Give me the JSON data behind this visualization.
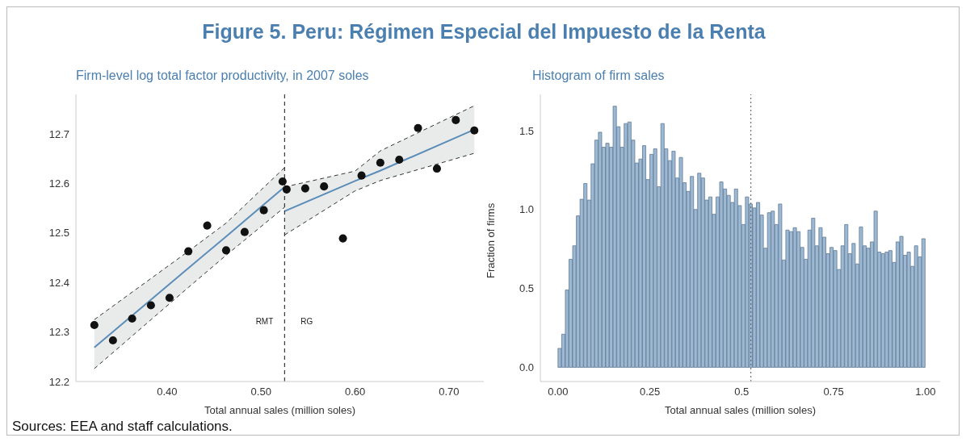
{
  "chart_data": [
    {
      "type": "scatter",
      "title": "Figure 5. Peru: Régimen Especial del Impuesto de la Renta",
      "subtitle": "Firm-level log total factor productivity, in 2007 soles",
      "xlabel": "Total annual sales (million soles)",
      "xlim": [
        0.303,
        0.737
      ],
      "xticks": [
        {
          "value": 0.4,
          "label": "0.40"
        },
        {
          "value": 0.5,
          "label": "0.50"
        },
        {
          "value": 0.6,
          "label": "0.60"
        },
        {
          "value": 0.7,
          "label": "0.70"
        }
      ],
      "ylim": [
        12.2,
        12.78
      ],
      "yticks": [
        12.2,
        12.3,
        12.4,
        12.5,
        12.6,
        12.7
      ],
      "series": [
        {
          "type": "scatter",
          "color": "#111111",
          "marker": "circle",
          "x": [
            0.3226,
            0.3424,
            0.3628,
            0.3828,
            0.4026,
            0.4226,
            0.4427,
            0.4628,
            0.4825,
            0.5029,
            0.5229,
            0.5272,
            0.547,
            0.567,
            0.5871,
            0.6069,
            0.6269,
            0.647,
            0.667,
            0.6871,
            0.7072,
            0.7269
          ],
          "values": [
            12.314,
            12.283,
            12.327,
            12.354,
            12.369,
            12.463,
            12.515,
            12.465,
            12.502,
            12.546,
            12.604,
            12.588,
            12.59,
            12.594,
            12.489,
            12.616,
            12.642,
            12.648,
            12.712,
            12.63,
            12.728,
            12.707
          ]
        },
        {
          "type": "line",
          "color": "#5b8db8",
          "x": [
            0.3226,
            0.4226,
            0.4628,
            0.525
          ],
          "values": [
            12.269,
            12.429,
            12.493,
            12.593
          ],
          "lower": [
            12.226,
            12.39,
            12.455,
            12.552
          ],
          "upper": [
            12.325,
            12.463,
            12.52,
            12.632
          ]
        },
        {
          "type": "line",
          "color": "#5b8db8",
          "x": [
            0.525,
            0.6,
            0.627,
            0.7269
          ],
          "values": [
            12.544,
            12.605,
            12.626,
            12.709
          ],
          "lower": [
            12.496,
            12.585,
            12.606,
            12.661
          ],
          "upper": [
            12.593,
            12.625,
            12.666,
            12.757
          ]
        },
        {
          "type": "line",
          "color": "#333333",
          "line_style": "dashed",
          "x": [
            0.3226,
            0.4226,
            0.4628,
            0.525
          ],
          "values": [
            12.226,
            12.39,
            12.455,
            12.552
          ]
        },
        {
          "type": "line",
          "color": "#333333",
          "line_style": "dashed",
          "x": [
            0.3226,
            0.4226,
            0.4628,
            0.525
          ],
          "values": [
            12.325,
            12.463,
            12.52,
            12.632
          ]
        },
        {
          "type": "line",
          "color": "#333333",
          "line_style": "dashed",
          "x": [
            0.525,
            0.6,
            0.627,
            0.7269
          ],
          "values": [
            12.496,
            12.585,
            12.606,
            12.661
          ]
        },
        {
          "type": "line",
          "color": "#333333",
          "line_style": "dashed",
          "x": [
            0.525,
            0.6,
            0.627,
            0.7269
          ],
          "values": [
            12.593,
            12.625,
            12.666,
            12.757
          ]
        }
      ],
      "ref_lines": [
        {
          "axis": "x",
          "value": 0.525,
          "color": "#111111",
          "line_style": "dashed"
        }
      ],
      "annotations": [
        "RMT",
        "RG"
      ]
    },
    {
      "type": "histogram",
      "title": "Histogram of firm sales",
      "xlabel": "Total annual sales (million soles)",
      "ylabel": "Fraction of firms",
      "color": "#9db8d2",
      "xlim": [
        -0.048,
        1.04
      ],
      "xticks": [
        {
          "value": 0,
          "label": "0.00"
        },
        0.25,
        0.5,
        0.75,
        {
          "value": 1,
          "label": "1.00"
        }
      ],
      "ylim": [
        -0.09,
        1.73
      ],
      "yticks": [
        {
          "value": 0,
          "label": "0.0"
        },
        0.5,
        {
          "value": 1,
          "label": "1.0"
        },
        1.5
      ],
      "bins": [
        0,
        0.01,
        0.02,
        0.03,
        0.04,
        0.05,
        0.06,
        0.07,
        0.08,
        0.09,
        0.1,
        0.11,
        0.12,
        0.13,
        0.14,
        0.15,
        0.16,
        0.17,
        0.18,
        0.19,
        0.2,
        0.21,
        0.22,
        0.23,
        0.24,
        0.25,
        0.26,
        0.27,
        0.28,
        0.29,
        0.3,
        0.31,
        0.32,
        0.33,
        0.34,
        0.35,
        0.36,
        0.37,
        0.38,
        0.39,
        0.4,
        0.41,
        0.42,
        0.43,
        0.44,
        0.45,
        0.46,
        0.47,
        0.48,
        0.49,
        0.5,
        0.51,
        0.52,
        0.53,
        0.54,
        0.55,
        0.56,
        0.57,
        0.58,
        0.59,
        0.6,
        0.61,
        0.62,
        0.63,
        0.64,
        0.65,
        0.66,
        0.67,
        0.68,
        0.69,
        0.7,
        0.71,
        0.72,
        0.73,
        0.74,
        0.75,
        0.76,
        0.77,
        0.78,
        0.79,
        0.8,
        0.81,
        0.82,
        0.83,
        0.84,
        0.85,
        0.86,
        0.87,
        0.88,
        0.89,
        0.9,
        0.91,
        0.92,
        0.93,
        0.94,
        0.95,
        0.96,
        0.97,
        0.98,
        0.99,
        1
      ],
      "values": [
        0.12,
        0.21,
        0.49,
        0.685,
        0.77,
        0.96,
        1.065,
        1.165,
        1.06,
        1.29,
        1.44,
        1.49,
        1.395,
        1.42,
        1.395,
        1.655,
        1.525,
        1.395,
        1.545,
        1.555,
        1.44,
        1.295,
        1.32,
        1.405,
        1.19,
        1.35,
        1.385,
        1.145,
        1.545,
        1.385,
        1.31,
        1.37,
        1.2,
        1.33,
        1.17,
        1.115,
        1.21,
        1.0,
        1.23,
        1.2,
        1.06,
        1.08,
        0.97,
        1.08,
        1.175,
        1.13,
        1.09,
        1.045,
        1.13,
        1.025,
        0.905,
        1.08,
        1.035,
        1.01,
        1.045,
        0.965,
        0.755,
        0.98,
        0.99,
        0.905,
        1.035,
        0.68,
        0.87,
        0.86,
        0.885,
        0.86,
        0.76,
        0.685,
        0.87,
        0.945,
        0.77,
        0.885,
        0.825,
        0.72,
        0.76,
        0.74,
        0.62,
        0.77,
        0.905,
        0.72,
        0.785,
        0.655,
        0.89,
        0.77,
        0.755,
        0.795,
        0.99,
        0.73,
        0.72,
        0.73,
        0.74,
        0.665,
        0.795,
        0.83,
        0.71,
        0.73,
        0.64,
        0.77,
        0.7,
        0.815
      ],
      "ref_lines": [
        {
          "axis": "x",
          "value": 0.525,
          "color": "#555555",
          "line_style": "dotted"
        }
      ],
      "annotations": [
        "Sources: EEA and staff calculations."
      ]
    }
  ]
}
